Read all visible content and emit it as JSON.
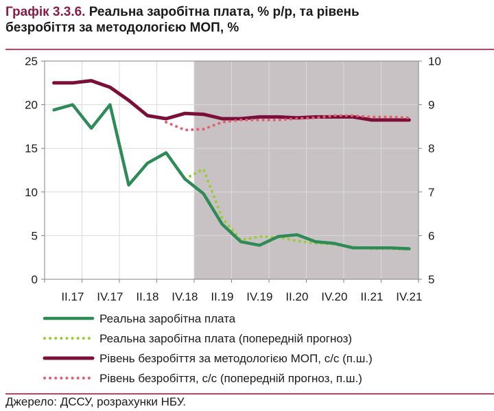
{
  "title": {
    "figure_label": "Графік 3.3.6.",
    "line1": "Реальна заробітна плата, % р/р, та рівень",
    "line2": "безробіття за методологією МОП, %"
  },
  "source": "Джерело: ДССУ, розрахунки НБУ.",
  "colors": {
    "wage": "#2e8b57",
    "wage_forecast": "#9acd32",
    "unemployment": "#7b0f3a",
    "unemployment_forecast": "#e06070",
    "forecast_shading": "#c9c2c4",
    "accent_rule": "#c8405e"
  },
  "chart_data": {
    "type": "line",
    "title": "Реальна заробітна плата, % р/р, та рівень безробіття за методологією МОП, %",
    "x_tick_labels": [
      "II.17",
      "IV.17",
      "II.18",
      "IV.18",
      "II.19",
      "IV.19",
      "II.20",
      "IV.20",
      "II.21",
      "IV.21"
    ],
    "x_quarters": [
      "I.17",
      "II.17",
      "III.17",
      "IV.17",
      "I.18",
      "II.18",
      "III.18",
      "IV.18",
      "I.19",
      "II.19",
      "III.19",
      "IV.19",
      "I.20",
      "II.20",
      "III.20",
      "IV.20",
      "I.21",
      "II.21",
      "III.21",
      "IV.21"
    ],
    "y_left": {
      "min": 0,
      "max": 25,
      "ticks": [
        0,
        5,
        10,
        15,
        20,
        25
      ]
    },
    "y_right": {
      "min": 5,
      "max": 10,
      "ticks": [
        5,
        6,
        7,
        8,
        9,
        10
      ],
      "label_hint": "п.ш."
    },
    "shaded_from": "IV.18",
    "series": [
      {
        "name": "Реальна заробітна плата",
        "axis": "left",
        "style": "solid",
        "x_start": "I.17",
        "x_end": "IV.21",
        "values": [
          19.4,
          20.0,
          17.3,
          20.0,
          10.8,
          13.3,
          14.5,
          11.5,
          9.8,
          6.3,
          4.3,
          3.9,
          4.9,
          5.1,
          4.3,
          4.1,
          3.6,
          3.6,
          3.6,
          3.5
        ]
      },
      {
        "name": "Реальна заробітна плата (попередній прогноз)",
        "axis": "left",
        "style": "dotted",
        "x_start": "I.17",
        "x_end": "IV.21",
        "values": [
          19.4,
          20.0,
          17.3,
          20.0,
          10.8,
          13.3,
          14.5,
          11.5,
          12.6,
          7.0,
          4.5,
          4.9,
          4.8,
          4.4,
          4.1,
          4.0,
          3.7,
          3.5,
          3.5,
          3.4
        ]
      },
      {
        "name": "Рівень безробіття за методологією МОП, с/с (п.ш.)",
        "axis": "right",
        "style": "solid",
        "x_start": "I.17",
        "x_end": "IV.21",
        "values": [
          9.5,
          9.5,
          9.55,
          9.4,
          9.1,
          8.75,
          8.68,
          8.8,
          8.78,
          8.68,
          8.68,
          8.72,
          8.72,
          8.7,
          8.72,
          8.72,
          8.72,
          8.65,
          8.65,
          8.65
        ]
      },
      {
        "name": "Рівень безробіття, с/с (попередній прогноз, п.ш.)",
        "axis": "right",
        "style": "dotted",
        "x_start": "III.18",
        "x_end": "IV.21",
        "values": [
          8.6,
          8.42,
          8.44,
          8.6,
          8.65,
          8.65,
          8.65,
          8.68,
          8.7,
          8.75,
          8.75,
          8.72,
          8.72,
          8.7
        ]
      }
    ],
    "legend_position": "bottom",
    "grid": true
  }
}
